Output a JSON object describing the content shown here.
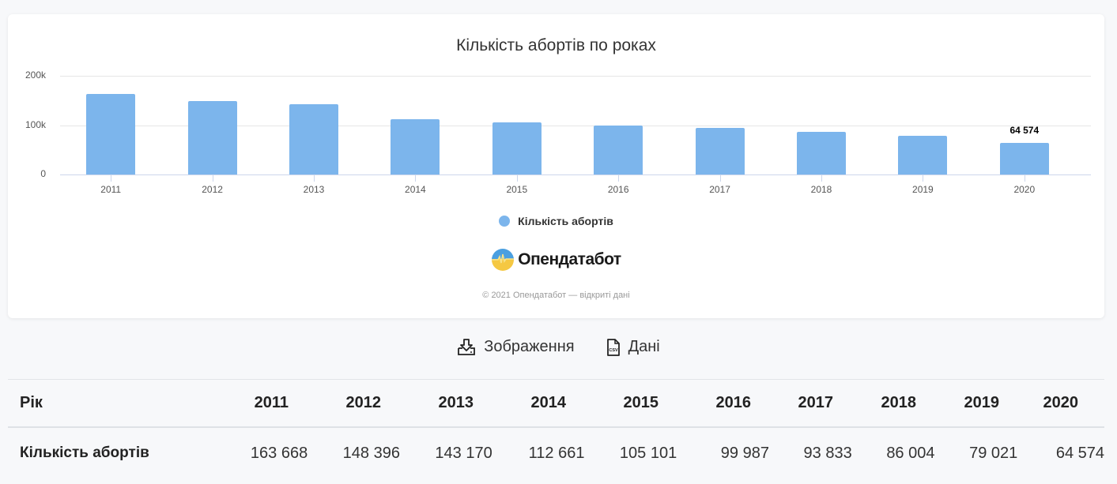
{
  "chart": {
    "title": "Кількість абортів по роках",
    "y_ticks": [
      "200k",
      "100k",
      "0"
    ],
    "legend_label": "Кількість абортів",
    "highlight_label": "64 574",
    "brand_name": "Опендатабот",
    "copyright": "© 2021 Опендатабот — відкриті дані",
    "bar_color": "#7cb5ec"
  },
  "downloads": {
    "image_label": "Зображення",
    "data_label": "Дані"
  },
  "table": {
    "header_label": "Рік",
    "row_label": "Кількість абортів",
    "years": [
      "2011",
      "2012",
      "2013",
      "2014",
      "2015",
      "2016",
      "2017",
      "2018",
      "2019",
      "2020"
    ],
    "values": [
      "163 668",
      "148 396",
      "143 170",
      "112 661",
      "105 101",
      "99 987",
      "93 833",
      "86 004",
      "79 021",
      "64 574"
    ]
  },
  "chart_data": {
    "type": "bar",
    "title": "Кількість абортів по роках",
    "categories": [
      "2011",
      "2012",
      "2013",
      "2014",
      "2015",
      "2016",
      "2017",
      "2018",
      "2019",
      "2020"
    ],
    "series": [
      {
        "name": "Кількість абортів",
        "color": "#7cb5ec",
        "values": [
          163668,
          148396,
          143170,
          112661,
          105101,
          99987,
          93833,
          86004,
          79021,
          64574
        ]
      }
    ],
    "xlabel": "",
    "ylabel": "",
    "ylim": [
      0,
      200000
    ],
    "y_ticks": [
      0,
      100000,
      200000
    ],
    "y_tick_labels": [
      "0",
      "100k",
      "200k"
    ],
    "grid": true,
    "legend_position": "bottom-center",
    "annotations": [
      {
        "x": "2020",
        "text": "64 574"
      }
    ]
  }
}
